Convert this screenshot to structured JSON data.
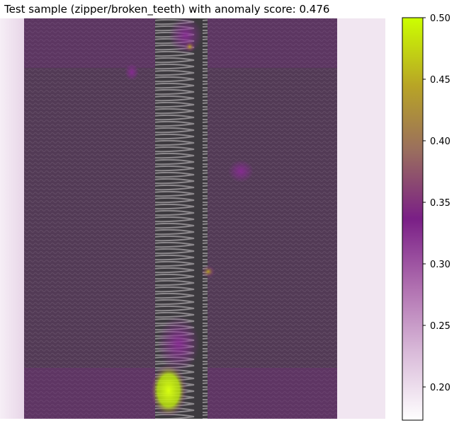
{
  "chart_data": {
    "type": "heatmap",
    "title": "Test sample (zipper/broken_teeth) with anomaly score: 0.476",
    "colorbar": {
      "vmin": 0.173,
      "vmax": 0.5,
      "ticks": [
        0.2,
        0.25,
        0.3,
        0.35,
        0.4,
        0.45,
        0.5
      ],
      "tick_labels": [
        "0.20",
        "0.25",
        "0.30",
        "0.35",
        "0.40",
        "0.45",
        "0.50"
      ],
      "colors": [
        "#ffffff",
        "#d9bad9",
        "#b070b0",
        "#7a1f86",
        "#9a6e5e",
        "#b8a426",
        "#ccff00"
      ]
    },
    "image_content": "zipper with broken teeth, anomaly overlay",
    "anomaly_hotspots": [
      {
        "region": "bottom of zipper teeth",
        "score": 0.5
      },
      {
        "region": "right of teeth, middle",
        "score": 0.4
      },
      {
        "region": "top of teeth",
        "score": 0.38
      }
    ]
  }
}
